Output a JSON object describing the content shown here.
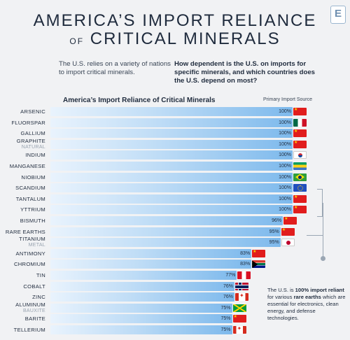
{
  "header": {
    "title_line1": "AMERICA’S IMPORT RELIANCE",
    "title_of": "OF",
    "title_line2": "CRITICAL MINERALS",
    "logo": "E"
  },
  "intro": {
    "left": "The U.S. relies on a variety of nations to import critical minerals.",
    "right": "How dependent is the U.S. on imports for specific minerals, and which countries does the U.S. depend on most?"
  },
  "chart_data": {
    "type": "bar",
    "title": "America’s Import Reliance of Critical Minerals",
    "source_header": "Primary Import Source",
    "xlim": [
      0,
      100
    ],
    "rows": [
      {
        "name": "ARSENIC",
        "sub": "",
        "value": 100,
        "label": "100%",
        "flag": "china"
      },
      {
        "name": "FLUORSPAR",
        "sub": "",
        "value": 100,
        "label": "100%",
        "flag": "mexico"
      },
      {
        "name": "GALLIUM",
        "sub": "",
        "value": 100,
        "label": "100%",
        "flag": "china"
      },
      {
        "name": "GRAPHITE",
        "sub": "NATURAL",
        "value": 100,
        "label": "100%",
        "flag": "china"
      },
      {
        "name": "INDIUM",
        "sub": "",
        "value": 100,
        "label": "100%",
        "flag": "south-korea"
      },
      {
        "name": "MANGANESE",
        "sub": "",
        "value": 100,
        "label": "100%",
        "flag": "gabon"
      },
      {
        "name": "NIOBIUM",
        "sub": "",
        "value": 100,
        "label": "100%",
        "flag": "brazil"
      },
      {
        "name": "SCANDIUM",
        "sub": "",
        "value": 100,
        "label": "100%",
        "flag": "eu"
      },
      {
        "name": "TANTALUM",
        "sub": "",
        "value": 100,
        "label": "100%",
        "flag": "china"
      },
      {
        "name": "YTTRIUM",
        "sub": "",
        "value": 100,
        "label": "100%",
        "flag": "china"
      },
      {
        "name": "BISMUTH",
        "sub": "",
        "value": 96,
        "label": "96%",
        "flag": "china"
      },
      {
        "name": "RARE EARTHS",
        "sub": "",
        "value": 95,
        "label": "95%",
        "flag": "china"
      },
      {
        "name": "TITANIUM",
        "sub": "METAL",
        "value": 95,
        "label": "95%",
        "flag": "japan"
      },
      {
        "name": "ANTIMONY",
        "sub": "",
        "value": 83,
        "label": "83%",
        "flag": "china"
      },
      {
        "name": "CHROMIUM",
        "sub": "",
        "value": 83,
        "label": "83%",
        "flag": "south-africa"
      },
      {
        "name": "TIN",
        "sub": "",
        "value": 77,
        "label": "77%",
        "flag": "peru"
      },
      {
        "name": "COBALT",
        "sub": "",
        "value": 76,
        "label": "76%",
        "flag": "norway"
      },
      {
        "name": "ZINC",
        "sub": "",
        "value": 76,
        "label": "76%",
        "flag": "canada"
      },
      {
        "name": "ALUMINUM",
        "sub": "BAUXITE",
        "value": 75,
        "label": "75%",
        "flag": "jamaica"
      },
      {
        "name": "BARITE",
        "sub": "",
        "value": 75,
        "label": "75%",
        "flag": "china"
      },
      {
        "name": "TELLERIUM",
        "sub": "",
        "value": 75,
        "label": "75%",
        "flag": "canada"
      }
    ]
  },
  "note": {
    "p1": "The U.S. is ",
    "b1": "100% import reliant",
    "p2": " for various ",
    "b2": "rare earths",
    "p3": " which are essential for electronics, clean energy, and defense technologies."
  },
  "colors": {
    "bar_start": "#e9f3fd",
    "bar_end": "#7db9ec",
    "text": "#1f2b3d"
  }
}
